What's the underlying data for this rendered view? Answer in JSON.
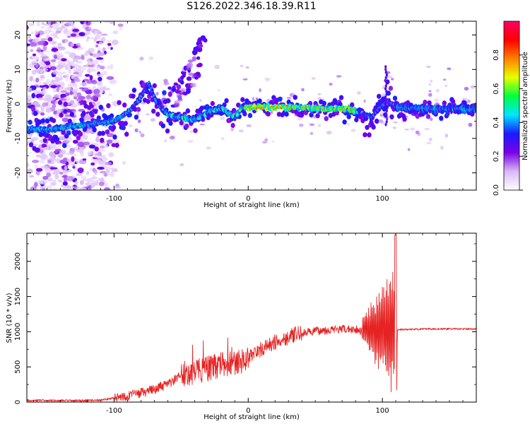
{
  "figure": {
    "title": "S126.2022.346.18.39.R11"
  },
  "chart_data": [
    {
      "type": "heatmap",
      "title": "S126.2022.346.18.39.R11",
      "xlabel": "Height of straight line (km)",
      "ylabel": "Frequency (Hz)",
      "xlim": [
        -165,
        170
      ],
      "ylim": [
        -25,
        24
      ],
      "x_ticks": [
        -100,
        0,
        100
      ],
      "y_ticks": [
        -20,
        -10,
        0,
        10,
        20
      ],
      "colorbar": {
        "label": "Normalized spectral amplitude",
        "range": [
          0,
          1
        ],
        "ticks": [
          "0.0",
          "0.2",
          "0.4",
          "0.6",
          "0.8"
        ],
        "stops": [
          "#ffffff",
          "#d9b8f5",
          "#7a00e6",
          "#1a1aff",
          "#00e6ff",
          "#00ff40",
          "#e6ff00",
          "#ff8000",
          "#ff0000",
          "#ff0066"
        ]
      },
      "ridge": [
        {
          "x": -165,
          "y": -7
        },
        {
          "x": -150,
          "y": -7.5
        },
        {
          "x": -130,
          "y": -6.5
        },
        {
          "x": -120,
          "y": -6
        },
        {
          "x": -110,
          "y": -5.5
        },
        {
          "x": -100,
          "y": -5
        },
        {
          "x": -90,
          "y": -2.5
        },
        {
          "x": -80,
          "y": 2
        },
        {
          "x": -74,
          "y": 6
        },
        {
          "x": -68,
          "y": 0
        },
        {
          "x": -60,
          "y": -3
        },
        {
          "x": -50,
          "y": -4
        },
        {
          "x": -40,
          "y": -4.5
        },
        {
          "x": -30,
          "y": -2.5
        },
        {
          "x": -20,
          "y": -1
        },
        {
          "x": -10,
          "y": -4
        },
        {
          "x": -5,
          "y": -1
        },
        {
          "x": 0,
          "y": -1
        },
        {
          "x": 20,
          "y": -1
        },
        {
          "x": 40,
          "y": -1
        },
        {
          "x": 60,
          "y": -1.5
        },
        {
          "x": 75,
          "y": -1.5
        },
        {
          "x": 85,
          "y": -2.5
        },
        {
          "x": 92,
          "y": -4
        },
        {
          "x": 98,
          "y": -1
        },
        {
          "x": 104,
          "y": 1
        },
        {
          "x": 110,
          "y": -1
        },
        {
          "x": 140,
          "y": -1.5
        },
        {
          "x": 170,
          "y": -1.5
        }
      ],
      "branches": [
        {
          "x": [
            -65,
            -50,
            -40,
            -32
          ],
          "y": [
            -1,
            7,
            14,
            20
          ]
        },
        {
          "x": [
            -55,
            -45,
            -35
          ],
          "y": [
            0,
            5,
            11
          ]
        }
      ]
    },
    {
      "type": "line",
      "xlabel": "Height of straight line (km)",
      "ylabel": "SNR (10 * v/v)",
      "xlim": [
        -165,
        170
      ],
      "ylim": [
        0,
        2400
      ],
      "x_ticks": [
        -100,
        0,
        100
      ],
      "y_ticks": [
        0,
        500,
        1000,
        1500,
        2000
      ],
      "color": "#e62222",
      "envelope": [
        {
          "x": -165,
          "y": 25
        },
        {
          "x": -130,
          "y": 20
        },
        {
          "x": -110,
          "y": 30
        },
        {
          "x": -90,
          "y": 90
        },
        {
          "x": -75,
          "y": 150
        },
        {
          "x": -60,
          "y": 250
        },
        {
          "x": -48,
          "y": 400
        },
        {
          "x": -35,
          "y": 450
        },
        {
          "x": -20,
          "y": 530
        },
        {
          "x": -5,
          "y": 580
        },
        {
          "x": 5,
          "y": 700
        },
        {
          "x": 20,
          "y": 850
        },
        {
          "x": 35,
          "y": 960
        },
        {
          "x": 50,
          "y": 1010
        },
        {
          "x": 65,
          "y": 1030
        },
        {
          "x": 80,
          "y": 1040
        },
        {
          "x": 85,
          "y": 1000
        },
        {
          "x": 110,
          "y": 1030
        },
        {
          "x": 140,
          "y": 1040
        },
        {
          "x": 170,
          "y": 1040
        }
      ],
      "oscillation_band": {
        "x": [
          85,
          111
        ],
        "min": 60,
        "max": 2380
      },
      "noise_sections": [
        {
          "x": [
            -165,
            -100
          ],
          "amplitude": 15
        },
        {
          "x": [
            -100,
            -50
          ],
          "amplitude": 70
        },
        {
          "x": [
            -50,
            0
          ],
          "amplitude": 180
        },
        {
          "x": [
            0,
            40
          ],
          "amplitude": 110
        },
        {
          "x": [
            40,
            85
          ],
          "amplitude": 60
        },
        {
          "x": [
            111,
            170
          ],
          "amplitude": 12
        }
      ]
    }
  ]
}
